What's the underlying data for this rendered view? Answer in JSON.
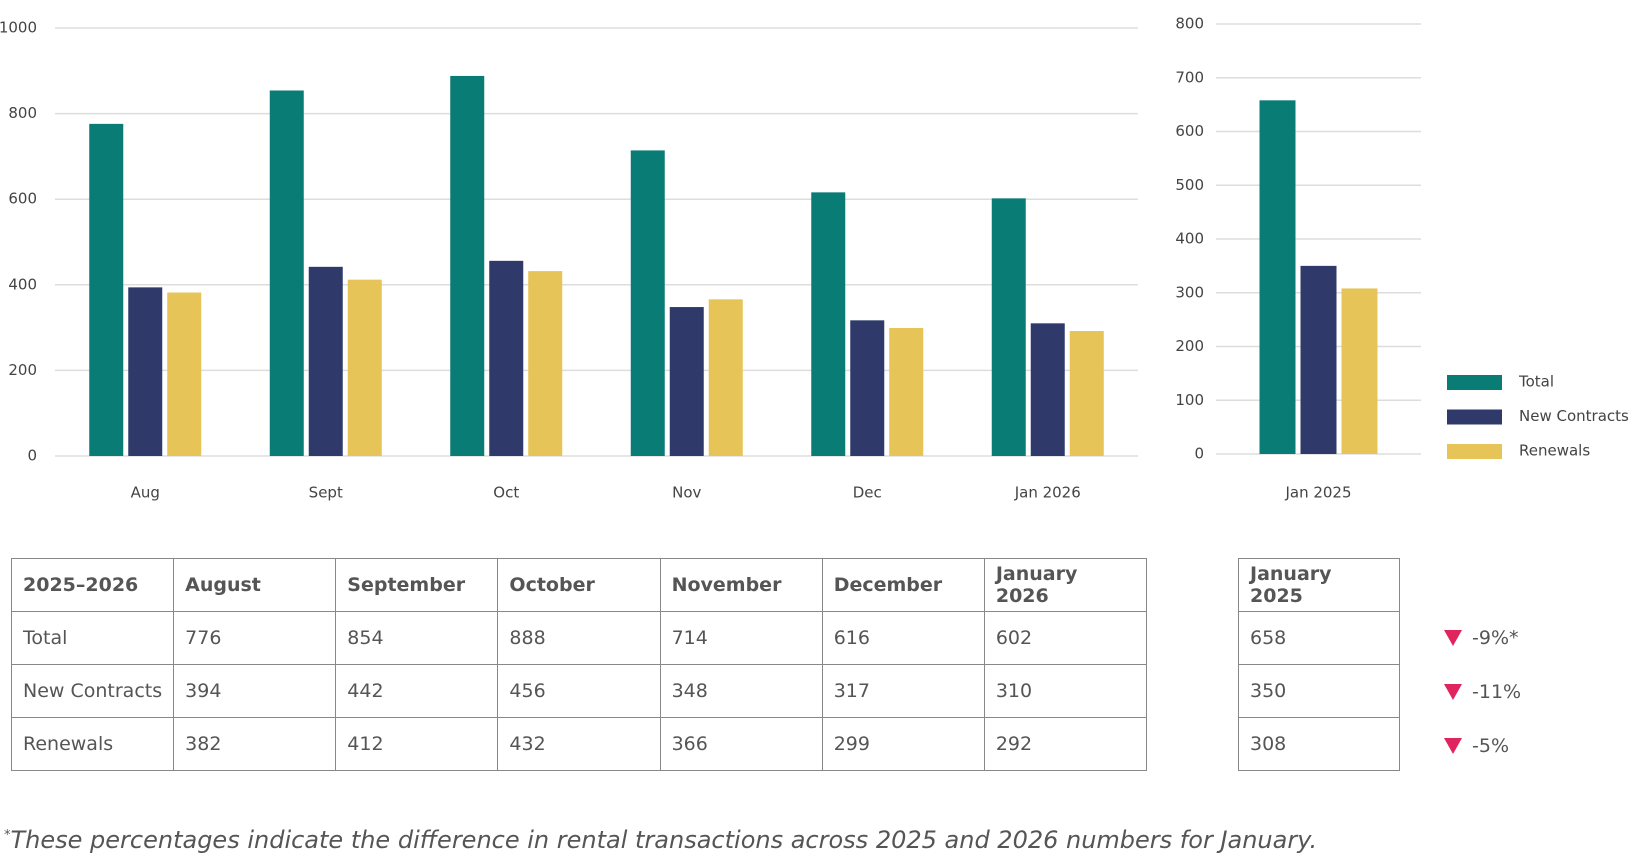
{
  "chart_data": [
    {
      "type": "bar",
      "categories": [
        "Aug",
        "Sept",
        "Oct",
        "Nov",
        "Dec",
        "Jan 2026"
      ],
      "series": [
        {
          "name": "Total",
          "color": "#0a7c76",
          "values": [
            776,
            854,
            888,
            714,
            616,
            602
          ]
        },
        {
          "name": "New Contracts",
          "color": "#2f3a6b",
          "values": [
            394,
            442,
            456,
            348,
            317,
            310
          ]
        },
        {
          "name": "Renewals",
          "color": "#e6c457",
          "values": [
            382,
            412,
            432,
            366,
            299,
            292
          ]
        }
      ],
      "ylim": [
        0,
        1000
      ],
      "yticks": [
        0,
        200,
        400,
        600,
        800,
        1000
      ],
      "grid": true
    },
    {
      "type": "bar",
      "categories": [
        "Jan 2025"
      ],
      "series": [
        {
          "name": "Total",
          "color": "#0a7c76",
          "values": [
            658
          ]
        },
        {
          "name": "New Contracts",
          "color": "#2f3a6b",
          "values": [
            350
          ]
        },
        {
          "name": "Renewals",
          "color": "#e6c457",
          "values": [
            308
          ]
        }
      ],
      "ylim": [
        0,
        800
      ],
      "yticks": [
        0,
        100,
        200,
        300,
        400,
        500,
        600,
        700,
        800
      ],
      "grid": true,
      "legend": "right"
    }
  ],
  "table": {
    "header": [
      "2025–2026",
      "August",
      "September",
      "October",
      "November",
      "December",
      "January 2026"
    ]
  },
  "table2": {
    "header": "January 2025"
  },
  "changes": [
    "-9%*",
    "-11%",
    "-5%"
  ],
  "change_color": "#e0245e",
  "footnote": {
    "marker": "*",
    "text": "These percentages indicate the difference in rental transactions across 2025 and 2026 numbers for January."
  }
}
